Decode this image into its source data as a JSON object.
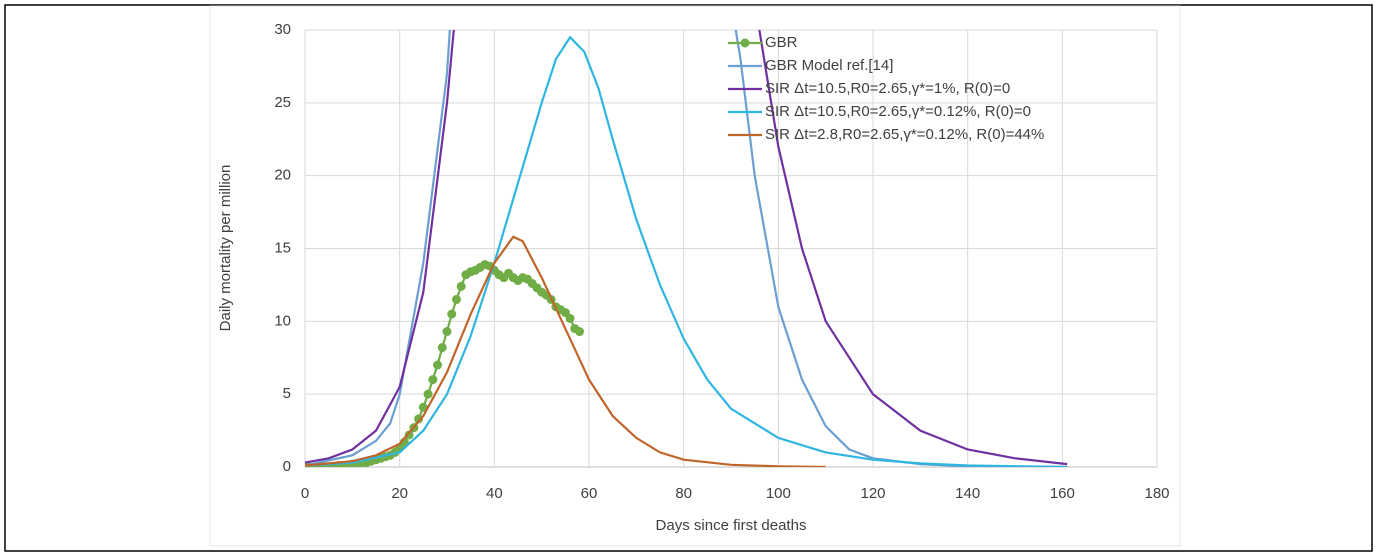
{
  "chart_data": {
    "type": "line",
    "xlabel": "Days since first deaths",
    "ylabel": "Daily mortality per million",
    "xlim": [
      0,
      180
    ],
    "xticks": [
      0,
      20,
      40,
      60,
      80,
      100,
      120,
      140,
      160,
      180
    ],
    "ylim": [
      0,
      30
    ],
    "yticks": [
      0,
      5,
      10,
      15,
      20,
      25,
      30
    ],
    "grid": true,
    "legend": "top",
    "series": [
      {
        "name": "GBR",
        "color": "#70ad47",
        "marker": "circle",
        "x": [
          0,
          1,
          2,
          3,
          4,
          5,
          6,
          7,
          8,
          9,
          10,
          11,
          12,
          13,
          14,
          15,
          16,
          17,
          18,
          19,
          20,
          21,
          22,
          23,
          24,
          25,
          26,
          27,
          28,
          29,
          30,
          31,
          32,
          33,
          34,
          35,
          36,
          37,
          38,
          39,
          40,
          41,
          42,
          43,
          44,
          45,
          46,
          47,
          48,
          49,
          50,
          51,
          52,
          53,
          54,
          55,
          56,
          57,
          58
        ],
        "values": [
          0,
          0,
          0,
          0,
          0,
          0,
          0,
          0.1,
          0.1,
          0.1,
          0.2,
          0.2,
          0.3,
          0.3,
          0.4,
          0.5,
          0.6,
          0.7,
          0.8,
          1.0,
          1.3,
          1.7,
          2.2,
          2.7,
          3.3,
          4.1,
          5.0,
          6.0,
          7.0,
          8.2,
          9.3,
          10.5,
          11.5,
          12.4,
          13.2,
          13.4,
          13.5,
          13.7,
          13.9,
          13.8,
          13.5,
          13.2,
          13.0,
          13.3,
          13.0,
          12.8,
          13.0,
          12.9,
          12.6,
          12.3,
          12.0,
          11.8,
          11.5,
          11.0,
          10.8,
          10.6,
          10.2,
          9.5,
          9.3
        ]
      },
      {
        "name": "GBR Model ref.[14]",
        "color": "#6b9fd1",
        "x": [
          0,
          10,
          15,
          18,
          20,
          25,
          30,
          31,
          32,
          90,
          92,
          95,
          100,
          105,
          110,
          115,
          120,
          130,
          140,
          160
        ],
        "values": [
          0.1,
          0.8,
          1.8,
          3,
          5,
          14,
          27,
          32,
          null,
          32,
          28,
          20,
          11,
          6,
          2.8,
          1.2,
          0.6,
          0.2,
          0.05,
          0
        ]
      },
      {
        "name": "SIR Δt=10.5,R0=2.65,γ*=1%, R(0)=0",
        "color": "#7030a0",
        "x": [
          0,
          5,
          10,
          15,
          20,
          25,
          30,
          32,
          33,
          93,
          96,
          100,
          105,
          110,
          120,
          130,
          140,
          150,
          161
        ],
        "values": [
          0.3,
          0.6,
          1.2,
          2.5,
          5.5,
          12,
          25,
          32,
          null,
          36,
          30,
          22,
          15,
          10,
          5,
          2.5,
          1.2,
          0.6,
          0.2
        ]
      },
      {
        "name": "SIR Δt=10.5,R0=2.65,γ*=0.12%, R(0)=0",
        "color": "#2eb5e0",
        "x": [
          0,
          10,
          20,
          25,
          30,
          35,
          40,
          45,
          50,
          53,
          56,
          59,
          62,
          65,
          70,
          75,
          80,
          85,
          90,
          100,
          110,
          120,
          130,
          140,
          161
        ],
        "values": [
          0.1,
          0.3,
          1,
          2.5,
          5,
          9,
          14,
          19.5,
          25,
          28,
          29.5,
          28.5,
          26,
          22.5,
          17,
          12.5,
          8.8,
          6,
          4,
          2,
          1,
          0.5,
          0.25,
          0.1,
          0
        ]
      },
      {
        "name": "SIR Δt=2.8,R0=2.65,γ*=0.12%, R(0)=44%",
        "color": "#c0652a",
        "x": [
          0,
          10,
          15,
          20,
          25,
          30,
          35,
          40,
          44,
          46,
          50,
          55,
          60,
          65,
          70,
          75,
          80,
          90,
          100,
          110
        ],
        "values": [
          0.1,
          0.4,
          0.8,
          1.6,
          3.5,
          6.5,
          10.5,
          14,
          15.8,
          15.5,
          13,
          9.5,
          6,
          3.5,
          2,
          1,
          0.5,
          0.15,
          0.05,
          0
        ]
      }
    ]
  }
}
